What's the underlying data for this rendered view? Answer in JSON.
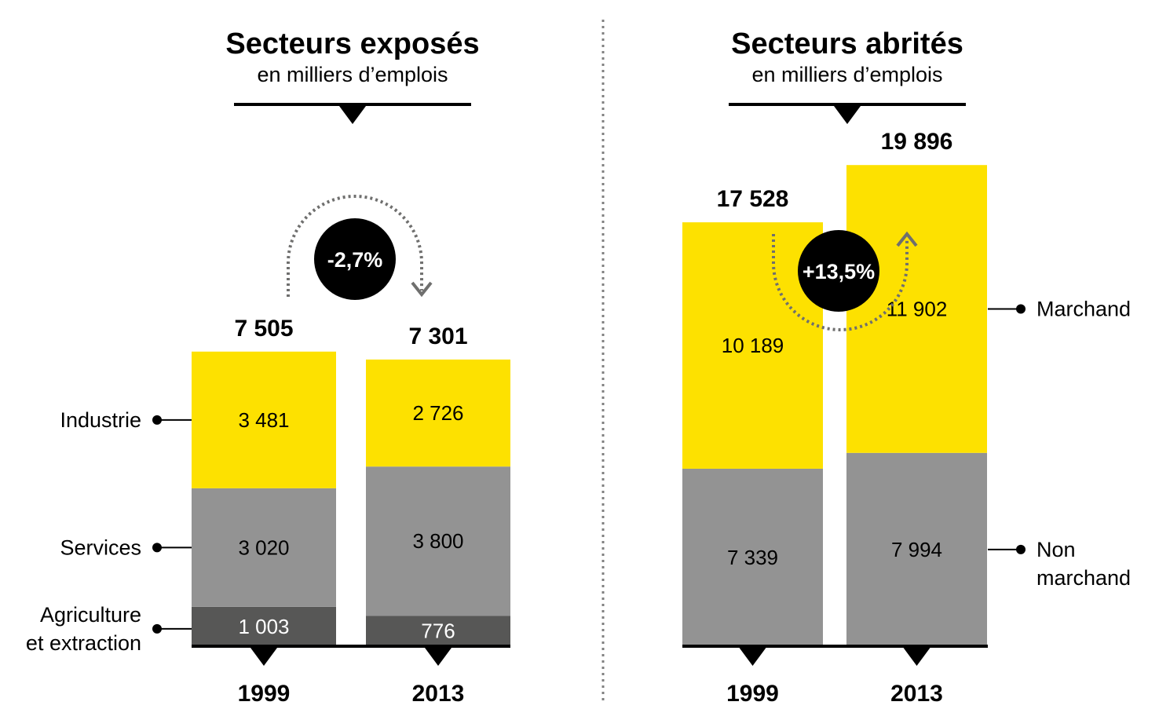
{
  "colors": {
    "yellow": "#fde100",
    "grey": "#939393",
    "dark_grey": "#575756",
    "black": "#000000",
    "arrow_grey": "#6f6f6e",
    "divider": "#808080"
  },
  "chart_data": [
    {
      "type": "bar",
      "stacked": true,
      "title": "Secteurs exposés",
      "subtitle": "en milliers d’emplois",
      "categories": [
        "1999",
        "2013"
      ],
      "series": [
        {
          "name": "Agriculture et extraction",
          "name_lines": [
            "Agriculture",
            "et extraction"
          ],
          "values": [
            1003,
            776
          ],
          "labels": [
            "1 003",
            "776"
          ],
          "color": "#575756"
        },
        {
          "name": "Services",
          "name_lines": [
            "Services"
          ],
          "values": [
            3020,
            3800
          ],
          "labels": [
            "3 020",
            "3 800"
          ],
          "color": "#939393"
        },
        {
          "name": "Industrie",
          "name_lines": [
            "Industrie"
          ],
          "values": [
            3481,
            2726
          ],
          "labels": [
            "3 481",
            "2 726"
          ],
          "color": "#fde100"
        }
      ],
      "totals": [
        7505,
        7301
      ],
      "total_labels": [
        "7 505",
        "7 301"
      ],
      "change": "-2,7%",
      "change_direction": "down",
      "legend_position": "left"
    },
    {
      "type": "bar",
      "stacked": true,
      "title": "Secteurs abrités",
      "subtitle": "en milliers d’emplois",
      "categories": [
        "1999",
        "2013"
      ],
      "series": [
        {
          "name": "Non marchand",
          "name_lines": [
            "Non",
            "marchand"
          ],
          "values": [
            7339,
            7994
          ],
          "labels": [
            "7 339",
            "7 994"
          ],
          "color": "#939393"
        },
        {
          "name": "Marchand",
          "name_lines": [
            "Marchand"
          ],
          "values": [
            10189,
            11902
          ],
          "labels": [
            "10 189",
            "11 902"
          ],
          "color": "#fde100"
        }
      ],
      "totals": [
        17528,
        19896
      ],
      "total_labels": [
        "17 528",
        "19 896"
      ],
      "change": "+13,5%",
      "change_direction": "up",
      "legend_position": "right"
    }
  ]
}
